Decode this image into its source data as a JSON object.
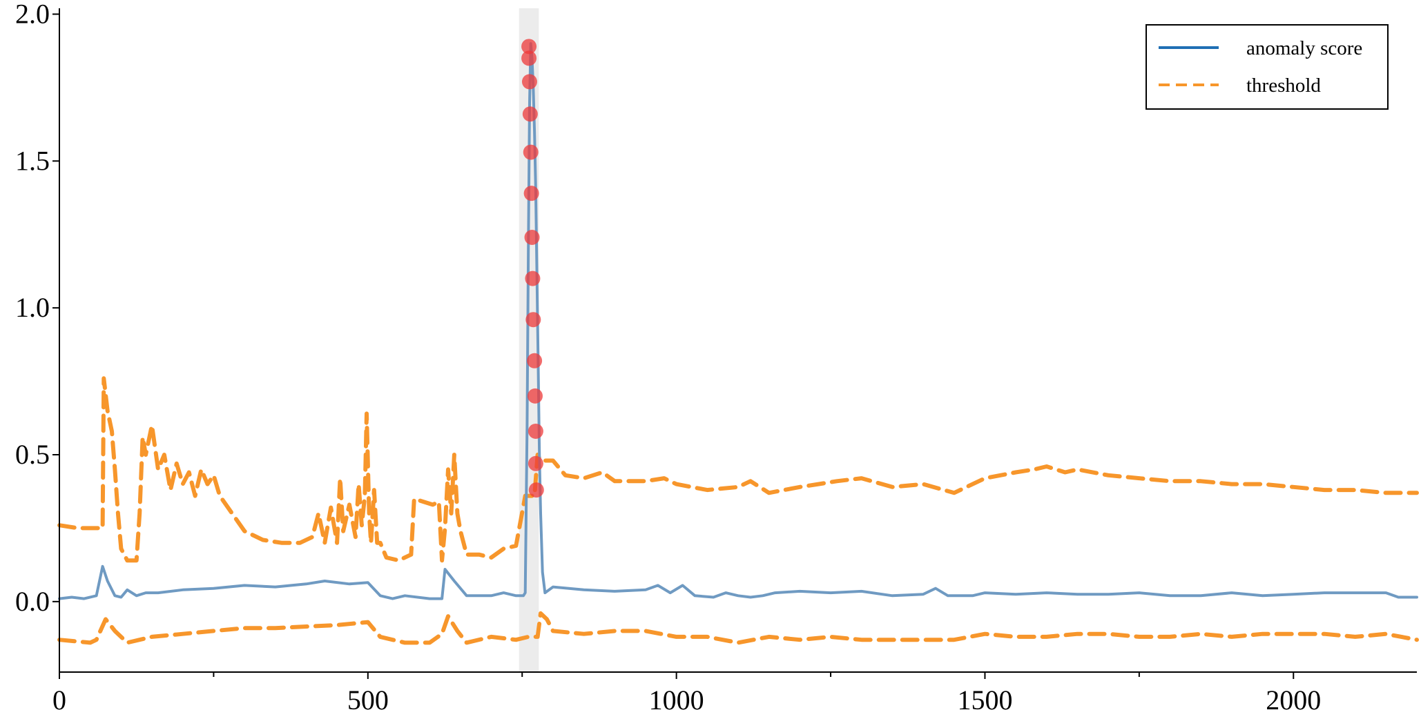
{
  "chart_data": {
    "type": "line",
    "title": "",
    "xlabel": "",
    "ylabel": "",
    "xlim": [
      0,
      2200
    ],
    "ylim": [
      -0.24,
      2.02
    ],
    "x_ticks": [
      0,
      500,
      1000,
      1500,
      2000
    ],
    "x_minor_ticks": [
      250,
      750,
      1250,
      1750
    ],
    "y_ticks": [
      0.0,
      0.5,
      1.0,
      1.5,
      2.0
    ],
    "y_tick_labels": [
      "0.0",
      "0.5",
      "1.0",
      "1.5",
      "2.0"
    ],
    "grid": false,
    "legend": {
      "position": "top-right",
      "entries": [
        {
          "label": "anomaly score",
          "style": "solid",
          "color": "#1f6fb4"
        },
        {
          "label": "threshold",
          "style": "dashed",
          "color": "#f7962b"
        }
      ]
    },
    "highlight_region": {
      "x_start": 745,
      "x_end": 777,
      "color": "#d9d9d9"
    },
    "series": [
      {
        "name": "anomaly score",
        "style": "solid",
        "color": "#6f9ac2",
        "points": [
          [
            0,
            0.01
          ],
          [
            20,
            0.015
          ],
          [
            40,
            0.01
          ],
          [
            60,
            0.02
          ],
          [
            70,
            0.12
          ],
          [
            78,
            0.07
          ],
          [
            90,
            0.02
          ],
          [
            100,
            0.015
          ],
          [
            110,
            0.04
          ],
          [
            125,
            0.02
          ],
          [
            140,
            0.03
          ],
          [
            160,
            0.03
          ],
          [
            200,
            0.04
          ],
          [
            250,
            0.045
          ],
          [
            300,
            0.055
          ],
          [
            350,
            0.05
          ],
          [
            400,
            0.06
          ],
          [
            430,
            0.07
          ],
          [
            470,
            0.06
          ],
          [
            500,
            0.065
          ],
          [
            520,
            0.02
          ],
          [
            540,
            0.01
          ],
          [
            560,
            0.02
          ],
          [
            600,
            0.01
          ],
          [
            620,
            0.01
          ],
          [
            625,
            0.11
          ],
          [
            640,
            0.07
          ],
          [
            660,
            0.02
          ],
          [
            700,
            0.02
          ],
          [
            720,
            0.03
          ],
          [
            740,
            0.02
          ],
          [
            752,
            0.02
          ],
          [
            755,
            0.03
          ],
          [
            758,
            0.6
          ],
          [
            760,
            1.2
          ],
          [
            762,
            1.7
          ],
          [
            764,
            1.9
          ],
          [
            766,
            1.85
          ],
          [
            768,
            1.75
          ],
          [
            770,
            1.6
          ],
          [
            772,
            1.4
          ],
          [
            774,
            1.1
          ],
          [
            776,
            0.8
          ],
          [
            778,
            0.5
          ],
          [
            780,
            0.3
          ],
          [
            783,
            0.1
          ],
          [
            787,
            0.03
          ],
          [
            800,
            0.05
          ],
          [
            850,
            0.04
          ],
          [
            900,
            0.035
          ],
          [
            950,
            0.04
          ],
          [
            970,
            0.055
          ],
          [
            990,
            0.03
          ],
          [
            1010,
            0.055
          ],
          [
            1030,
            0.02
          ],
          [
            1060,
            0.015
          ],
          [
            1080,
            0.03
          ],
          [
            1100,
            0.02
          ],
          [
            1120,
            0.015
          ],
          [
            1140,
            0.02
          ],
          [
            1160,
            0.03
          ],
          [
            1200,
            0.035
          ],
          [
            1250,
            0.03
          ],
          [
            1300,
            0.035
          ],
          [
            1350,
            0.02
          ],
          [
            1400,
            0.025
          ],
          [
            1420,
            0.045
          ],
          [
            1440,
            0.02
          ],
          [
            1480,
            0.02
          ],
          [
            1500,
            0.03
          ],
          [
            1550,
            0.025
          ],
          [
            1600,
            0.03
          ],
          [
            1650,
            0.025
          ],
          [
            1700,
            0.025
          ],
          [
            1750,
            0.03
          ],
          [
            1800,
            0.02
          ],
          [
            1850,
            0.02
          ],
          [
            1900,
            0.03
          ],
          [
            1950,
            0.02
          ],
          [
            2000,
            0.025
          ],
          [
            2050,
            0.03
          ],
          [
            2100,
            0.03
          ],
          [
            2150,
            0.03
          ],
          [
            2170,
            0.015
          ],
          [
            2200,
            0.015
          ]
        ]
      },
      {
        "name": "threshold",
        "style": "dashed",
        "color": "#f7962b",
        "points": [
          [
            0,
            0.26
          ],
          [
            30,
            0.25
          ],
          [
            70,
            0.25
          ],
          [
            72,
            0.76
          ],
          [
            78,
            0.65
          ],
          [
            85,
            0.58
          ],
          [
            90,
            0.45
          ],
          [
            95,
            0.3
          ],
          [
            100,
            0.18
          ],
          [
            110,
            0.14
          ],
          [
            125,
            0.14
          ],
          [
            130,
            0.3
          ],
          [
            135,
            0.56
          ],
          [
            140,
            0.5
          ],
          [
            150,
            0.6
          ],
          [
            160,
            0.45
          ],
          [
            170,
            0.5
          ],
          [
            180,
            0.38
          ],
          [
            190,
            0.47
          ],
          [
            200,
            0.4
          ],
          [
            210,
            0.44
          ],
          [
            220,
            0.36
          ],
          [
            230,
            0.45
          ],
          [
            240,
            0.4
          ],
          [
            250,
            0.43
          ],
          [
            260,
            0.36
          ],
          [
            280,
            0.3
          ],
          [
            300,
            0.24
          ],
          [
            330,
            0.21
          ],
          [
            360,
            0.2
          ],
          [
            390,
            0.2
          ],
          [
            410,
            0.22
          ],
          [
            420,
            0.3
          ],
          [
            430,
            0.2
          ],
          [
            440,
            0.32
          ],
          [
            450,
            0.2
          ],
          [
            455,
            0.42
          ],
          [
            460,
            0.24
          ],
          [
            470,
            0.33
          ],
          [
            480,
            0.22
          ],
          [
            485,
            0.4
          ],
          [
            490,
            0.26
          ],
          [
            495,
            0.36
          ],
          [
            498,
            0.64
          ],
          [
            502,
            0.3
          ],
          [
            505,
            0.2
          ],
          [
            510,
            0.38
          ],
          [
            515,
            0.2
          ],
          [
            520,
            0.2
          ],
          [
            530,
            0.15
          ],
          [
            550,
            0.14
          ],
          [
            570,
            0.16
          ],
          [
            575,
            0.35
          ],
          [
            590,
            0.34
          ],
          [
            605,
            0.33
          ],
          [
            615,
            0.34
          ],
          [
            620,
            0.14
          ],
          [
            625,
            0.25
          ],
          [
            630,
            0.45
          ],
          [
            635,
            0.3
          ],
          [
            640,
            0.5
          ],
          [
            645,
            0.3
          ],
          [
            650,
            0.24
          ],
          [
            660,
            0.16
          ],
          [
            680,
            0.16
          ],
          [
            700,
            0.15
          ],
          [
            720,
            0.18
          ],
          [
            740,
            0.19
          ],
          [
            755,
            0.36
          ],
          [
            765,
            0.36
          ],
          [
            770,
            0.36
          ],
          [
            775,
            0.5
          ],
          [
            780,
            0.48
          ],
          [
            800,
            0.48
          ],
          [
            820,
            0.43
          ],
          [
            850,
            0.42
          ],
          [
            880,
            0.44
          ],
          [
            900,
            0.41
          ],
          [
            950,
            0.41
          ],
          [
            980,
            0.42
          ],
          [
            1000,
            0.4
          ],
          [
            1050,
            0.38
          ],
          [
            1100,
            0.39
          ],
          [
            1120,
            0.41
          ],
          [
            1150,
            0.37
          ],
          [
            1200,
            0.39
          ],
          [
            1230,
            0.4
          ],
          [
            1260,
            0.41
          ],
          [
            1300,
            0.42
          ],
          [
            1350,
            0.39
          ],
          [
            1400,
            0.4
          ],
          [
            1450,
            0.37
          ],
          [
            1500,
            0.42
          ],
          [
            1550,
            0.44
          ],
          [
            1580,
            0.45
          ],
          [
            1600,
            0.46
          ],
          [
            1630,
            0.44
          ],
          [
            1650,
            0.45
          ],
          [
            1700,
            0.43
          ],
          [
            1750,
            0.42
          ],
          [
            1800,
            0.41
          ],
          [
            1850,
            0.41
          ],
          [
            1900,
            0.4
          ],
          [
            1950,
            0.4
          ],
          [
            2000,
            0.39
          ],
          [
            2050,
            0.38
          ],
          [
            2100,
            0.38
          ],
          [
            2150,
            0.37
          ],
          [
            2200,
            0.37
          ]
        ]
      },
      {
        "name": "",
        "style": "dashed",
        "color": "#f7962b",
        "points": [
          [
            0,
            -0.13
          ],
          [
            50,
            -0.14
          ],
          [
            60,
            -0.13
          ],
          [
            75,
            -0.06
          ],
          [
            90,
            -0.1
          ],
          [
            110,
            -0.14
          ],
          [
            150,
            -0.12
          ],
          [
            200,
            -0.11
          ],
          [
            250,
            -0.1
          ],
          [
            300,
            -0.09
          ],
          [
            350,
            -0.09
          ],
          [
            400,
            -0.085
          ],
          [
            450,
            -0.08
          ],
          [
            500,
            -0.07
          ],
          [
            520,
            -0.12
          ],
          [
            560,
            -0.14
          ],
          [
            600,
            -0.14
          ],
          [
            620,
            -0.11
          ],
          [
            630,
            -0.05
          ],
          [
            645,
            -0.1
          ],
          [
            660,
            -0.14
          ],
          [
            700,
            -0.12
          ],
          [
            740,
            -0.13
          ],
          [
            760,
            -0.12
          ],
          [
            775,
            -0.12
          ],
          [
            780,
            -0.04
          ],
          [
            790,
            -0.06
          ],
          [
            800,
            -0.1
          ],
          [
            850,
            -0.11
          ],
          [
            900,
            -0.1
          ],
          [
            950,
            -0.1
          ],
          [
            1000,
            -0.12
          ],
          [
            1050,
            -0.12
          ],
          [
            1100,
            -0.14
          ],
          [
            1150,
            -0.12
          ],
          [
            1200,
            -0.13
          ],
          [
            1250,
            -0.12
          ],
          [
            1300,
            -0.13
          ],
          [
            1350,
            -0.13
          ],
          [
            1400,
            -0.13
          ],
          [
            1450,
            -0.13
          ],
          [
            1500,
            -0.11
          ],
          [
            1550,
            -0.12
          ],
          [
            1600,
            -0.12
          ],
          [
            1650,
            -0.11
          ],
          [
            1700,
            -0.11
          ],
          [
            1750,
            -0.12
          ],
          [
            1800,
            -0.12
          ],
          [
            1850,
            -0.11
          ],
          [
            1900,
            -0.12
          ],
          [
            1950,
            -0.11
          ],
          [
            2000,
            -0.11
          ],
          [
            2050,
            -0.11
          ],
          [
            2100,
            -0.12
          ],
          [
            2150,
            -0.11
          ],
          [
            2200,
            -0.13
          ]
        ]
      }
    ],
    "anomaly_points": {
      "color": "#ee3a3a",
      "points": [
        [
          761,
          1.89
        ],
        [
          761,
          1.85
        ],
        [
          762,
          1.77
        ],
        [
          763,
          1.66
        ],
        [
          764,
          1.53
        ],
        [
          765,
          1.39
        ],
        [
          766,
          1.24
        ],
        [
          767,
          1.1
        ],
        [
          768,
          0.96
        ],
        [
          770,
          0.82
        ],
        [
          771,
          0.7
        ],
        [
          772,
          0.58
        ],
        [
          772,
          0.47
        ],
        [
          773,
          0.38
        ]
      ]
    }
  }
}
